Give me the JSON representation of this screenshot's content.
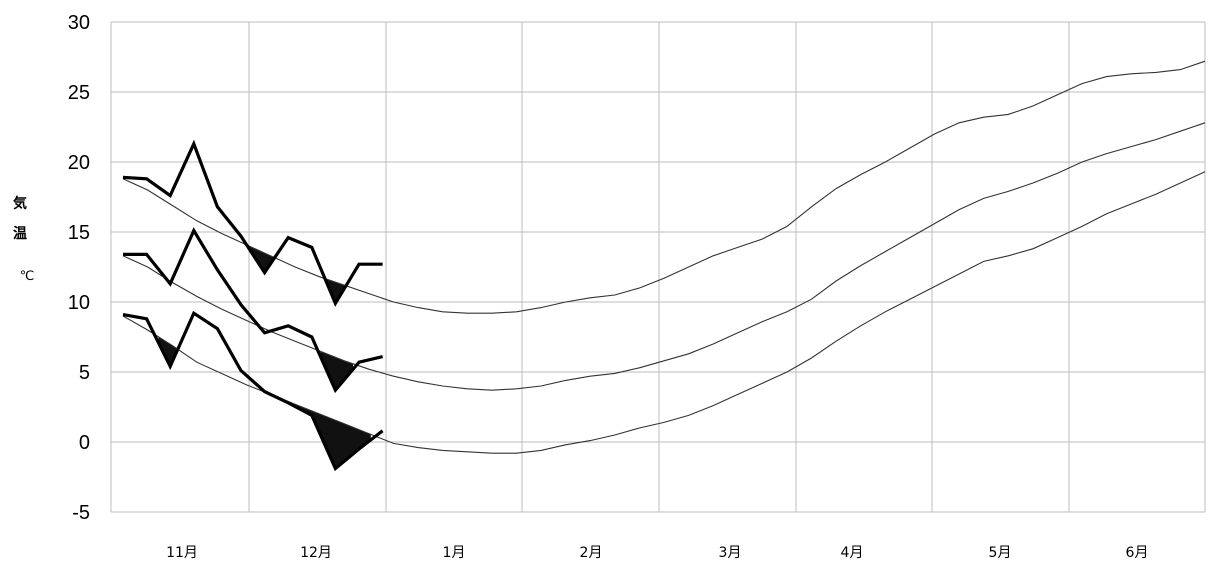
{
  "chart_data": {
    "type": "line",
    "title": "",
    "xlabel": "",
    "ylabel": "気温",
    "yunit": "℃",
    "ylim": [
      -5,
      30
    ],
    "yticks": [
      30,
      25,
      20,
      15,
      10,
      5,
      0,
      -5
    ],
    "categories": [
      "11月",
      "12月",
      "1月",
      "2月",
      "3月",
      "4月",
      "5月",
      "6月"
    ],
    "grid": true,
    "legend": "none",
    "normals": [
      {
        "values": [
          18.8,
          18.0,
          16.9,
          15.8,
          14.9,
          14.1,
          13.3,
          12.5,
          11.8,
          11.2,
          10.6,
          10.0,
          9.6,
          9.3,
          9.2,
          9.2,
          9.3,
          9.6,
          10.0,
          10.3,
          10.5,
          11.0,
          11.7,
          12.5,
          13.3,
          13.9,
          14.5,
          15.4,
          16.8,
          18.1,
          19.1,
          20.0,
          21.0,
          22.0,
          22.8,
          23.2,
          23.4,
          24.0,
          24.8,
          25.6,
          26.1,
          26.3,
          26.4,
          26.6,
          27.2
        ]
      },
      {
        "values": [
          13.3,
          12.5,
          11.4,
          10.4,
          9.5,
          8.7,
          7.9,
          7.2,
          6.5,
          5.8,
          5.2,
          4.7,
          4.3,
          4.0,
          3.8,
          3.7,
          3.8,
          4.0,
          4.4,
          4.7,
          4.9,
          5.3,
          5.8,
          6.3,
          7.0,
          7.8,
          8.6,
          9.3,
          10.2,
          11.5,
          12.6,
          13.6,
          14.6,
          15.6,
          16.6,
          17.4,
          17.9,
          18.5,
          19.2,
          20.0,
          20.6,
          21.1,
          21.6,
          22.2,
          22.8
        ]
      },
      {
        "values": [
          9.0,
          8.0,
          6.9,
          5.7,
          4.9,
          4.1,
          3.4,
          2.7,
          2.0,
          1.3,
          0.6,
          -0.1,
          -0.4,
          -0.6,
          -0.7,
          -0.8,
          -0.8,
          -0.6,
          -0.2,
          0.1,
          0.5,
          1.0,
          1.4,
          1.9,
          2.6,
          3.4,
          4.2,
          5.0,
          6.0,
          7.2,
          8.3,
          9.3,
          10.2,
          11.1,
          12.0,
          12.9,
          13.3,
          13.8,
          14.6,
          15.4,
          16.3,
          17.0,
          17.7,
          18.5,
          19.3
        ]
      }
    ],
    "observed": [
      {
        "values": [
          18.9,
          18.8,
          17.6,
          21.3,
          16.8,
          14.7,
          12.1,
          14.6,
          13.9,
          9.9,
          12.7,
          12.7
        ]
      },
      {
        "values": [
          13.4,
          13.4,
          11.3,
          15.1,
          12.3,
          9.8,
          7.8,
          8.3,
          7.5,
          3.7,
          5.7,
          6.1
        ]
      },
      {
        "values": [
          9.1,
          8.8,
          5.4,
          9.2,
          8.1,
          5.1,
          3.6,
          2.8,
          1.9,
          -1.9,
          -0.5,
          0.8
        ]
      }
    ]
  }
}
